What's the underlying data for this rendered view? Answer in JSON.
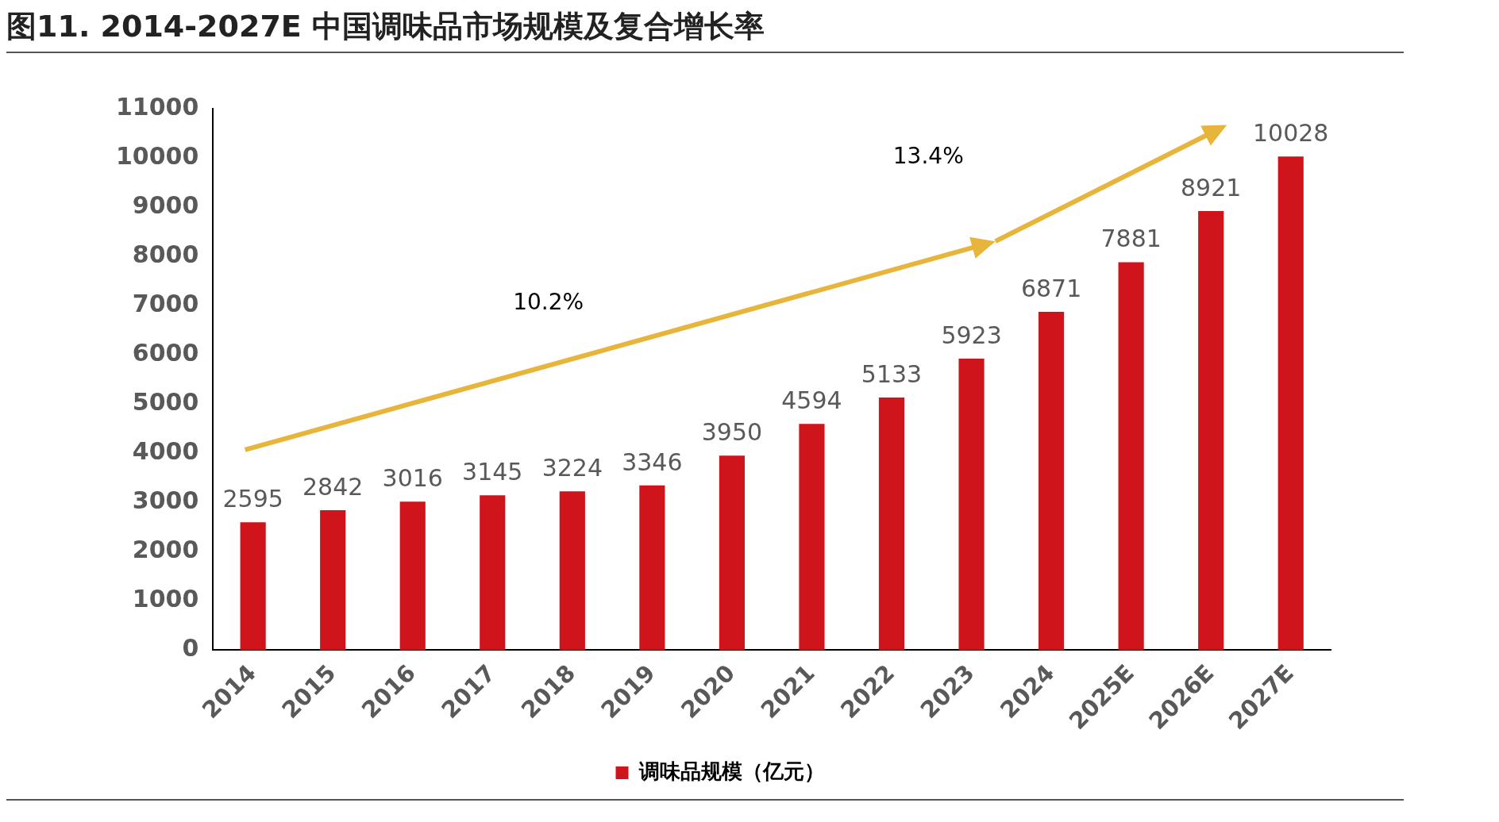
{
  "chart_data": {
    "type": "bar",
    "title": "图11. 2014-2027E 中国调味品市场规模及复合增长率",
    "categories": [
      "2014",
      "2015",
      "2016",
      "2017",
      "2018",
      "2019",
      "2020",
      "2021",
      "2022",
      "2023",
      "2024",
      "2025E",
      "2026E",
      "2027E"
    ],
    "series": [
      {
        "name": "调味品规模（亿元）",
        "color": "#d0141c",
        "values": [
          2595,
          2842,
          3016,
          3145,
          3224,
          3346,
          3950,
          4594,
          5133,
          5923,
          6871,
          7881,
          8921,
          10028
        ]
      }
    ],
    "ylim": [
      0,
      11000
    ],
    "yticks": [
      0,
      1000,
      2000,
      3000,
      4000,
      5000,
      6000,
      7000,
      8000,
      9000,
      10000,
      11000
    ],
    "grid": false,
    "legend": "bottom",
    "data_labels": true,
    "annotations": [
      "10.2%",
      "13.4%"
    ]
  }
}
